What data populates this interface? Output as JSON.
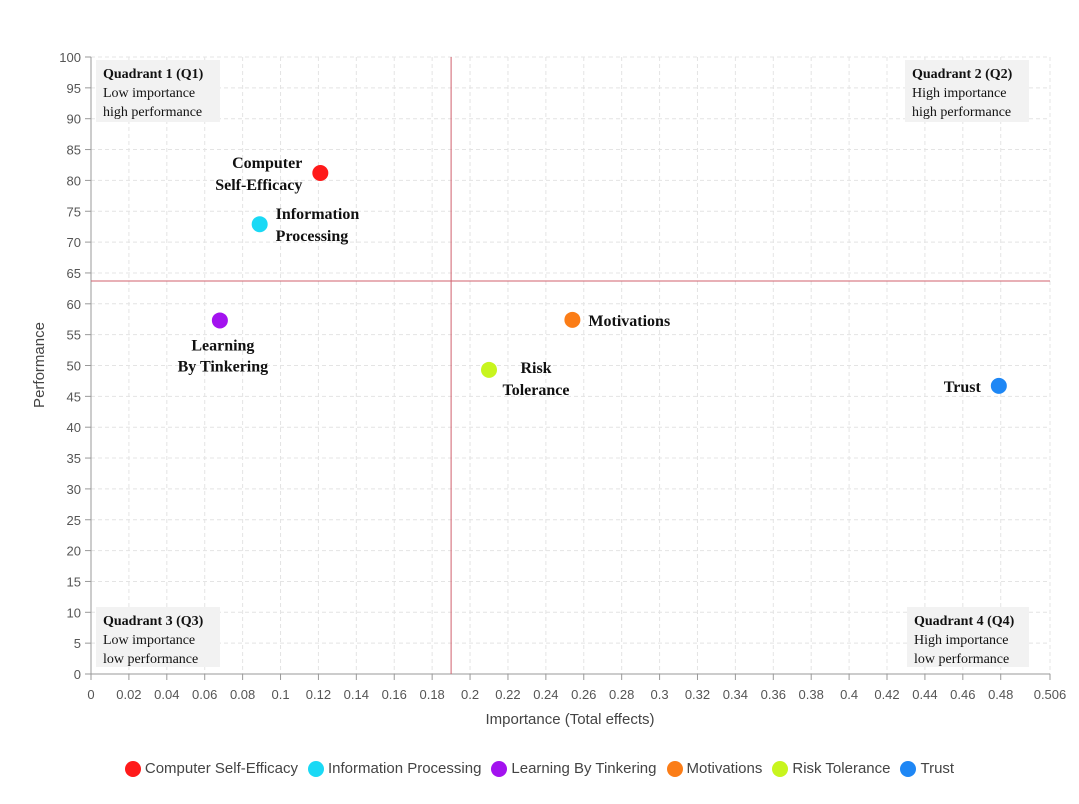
{
  "chart_data": {
    "type": "scatter",
    "xlabel": "Importance (Total effects)",
    "ylabel": "Performance",
    "xlim": [
      0,
      0.506
    ],
    "ylim": [
      0,
      100
    ],
    "x_ticks": [
      0,
      0.02,
      0.04,
      0.06,
      0.08,
      0.1,
      0.12,
      0.14,
      0.16,
      0.18,
      0.2,
      0.22,
      0.24,
      0.26,
      0.28,
      0.3,
      0.32,
      0.34,
      0.36,
      0.38,
      0.4,
      0.42,
      0.44,
      0.46,
      0.48,
      0.506
    ],
    "x_tick_labels": [
      "0",
      "0.02",
      "0.04",
      "0.06",
      "0.08",
      "0.1",
      "0.12",
      "0.14",
      "0.16",
      "0.18",
      "0.2",
      "0.22",
      "0.24",
      "0.26",
      "0.28",
      "0.3",
      "0.32",
      "0.34",
      "0.36",
      "0.38",
      "0.4",
      "0.42",
      "0.44",
      "0.46",
      "0.48",
      "0.506"
    ],
    "y_ticks": [
      0,
      5,
      10,
      15,
      20,
      25,
      30,
      35,
      40,
      45,
      50,
      55,
      60,
      65,
      70,
      75,
      80,
      85,
      90,
      95,
      100
    ],
    "grid": true,
    "reference_lines": {
      "x": 0.19,
      "y": 63.7,
      "color": "#d0606e"
    },
    "quadrants": [
      {
        "title": "Quadrant 1 (Q1)",
        "line1": "Low importance",
        "line2": "high performance",
        "position": "top-left"
      },
      {
        "title": "Quadrant 2 (Q2)",
        "line1": "High importance",
        "line2": "high performance",
        "position": "top-right"
      },
      {
        "title": "Quadrant 3 (Q3)",
        "line1": "Low importance",
        "line2": "low performance",
        "position": "bottom-left"
      },
      {
        "title": "Quadrant 4 (Q4)",
        "line1": "High importance",
        "line2": "low performance",
        "position": "bottom-right"
      }
    ],
    "series": [
      {
        "name": "Computer Self-Efficacy",
        "x": 0.121,
        "y": 81.2,
        "color": "#ff1a1a",
        "label_lines": [
          "Computer",
          "Self-Efficacy"
        ],
        "label_side": "left"
      },
      {
        "name": "Information Processing",
        "x": 0.089,
        "y": 72.9,
        "color": "#1ad9f5",
        "label_lines": [
          "Information",
          "Processing"
        ],
        "label_side": "right"
      },
      {
        "name": "Learning By Tinkering",
        "x": 0.068,
        "y": 57.3,
        "color": "#a312ef",
        "label_lines": [
          "Learning",
          "By Tinkering"
        ],
        "label_side": "below"
      },
      {
        "name": "Motivations",
        "x": 0.254,
        "y": 57.4,
        "color": "#fb7d17",
        "label_lines": [
          "Motivations"
        ],
        "label_side": "right"
      },
      {
        "name": "Risk Tolerance",
        "x": 0.21,
        "y": 49.3,
        "color": "#c8f51e",
        "label_lines": [
          "Risk",
          "Tolerance"
        ],
        "label_side": "below-right"
      },
      {
        "name": "Trust",
        "x": 0.479,
        "y": 46.7,
        "color": "#1e87f5",
        "label_lines": [
          "Trust"
        ],
        "label_side": "left"
      }
    ]
  }
}
